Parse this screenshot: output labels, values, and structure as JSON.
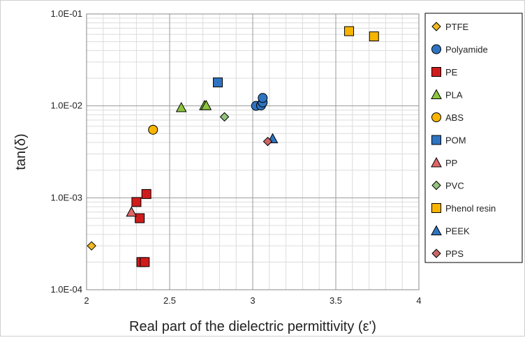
{
  "chart_data": {
    "type": "scatter",
    "title": "",
    "xlabel": "Real part of the dielectric permittivity (ε')",
    "ylabel": "tan(δ)",
    "x_scale": "linear",
    "y_scale": "log",
    "xlim": [
      2,
      4
    ],
    "ylim": [
      0.0001,
      0.1
    ],
    "x_ticks": [
      2,
      2.5,
      3,
      3.5,
      4
    ],
    "x_tick_labels": [
      "2",
      "2.5",
      "3",
      "3.5",
      "4"
    ],
    "y_ticks": [
      0.0001,
      0.001,
      0.01,
      0.1
    ],
    "y_tick_labels": [
      "1.0E-04",
      "1.0E-03",
      "1.0E-02",
      "1.0E-01"
    ],
    "grid": true,
    "legend_position": "right",
    "series": [
      {
        "name": "PTFE",
        "marker": "diamond",
        "color": "#f2b81f",
        "points": [
          [
            2.03,
            0.0003
          ]
        ]
      },
      {
        "name": "Polyamide",
        "marker": "circle",
        "color": "#2f74c0",
        "points": [
          [
            3.02,
            0.01
          ],
          [
            3.05,
            0.0101
          ],
          [
            3.06,
            0.0109
          ],
          [
            3.06,
            0.0122
          ]
        ]
      },
      {
        "name": "PE",
        "marker": "square",
        "color": "#d01c1c",
        "points": [
          [
            2.3,
            0.0009
          ],
          [
            2.32,
            0.0006
          ],
          [
            2.36,
            0.0011
          ],
          [
            2.33,
            0.0002
          ],
          [
            2.35,
            0.0002
          ]
        ]
      },
      {
        "name": "PLA",
        "marker": "triangle",
        "color": "#8cc63f",
        "points": [
          [
            2.57,
            0.0096
          ],
          [
            2.71,
            0.0101
          ],
          [
            2.72,
            0.0101
          ]
        ]
      },
      {
        "name": "ABS",
        "marker": "circle",
        "color": "#f7b500",
        "points": [
          [
            2.4,
            0.0055
          ]
        ]
      },
      {
        "name": "POM",
        "marker": "square",
        "color": "#2f74c0",
        "points": [
          [
            2.79,
            0.018
          ]
        ]
      },
      {
        "name": "PP",
        "marker": "triangle",
        "color": "#e06666",
        "points": [
          [
            2.27,
            0.0007
          ]
        ]
      },
      {
        "name": "PVC",
        "marker": "diamond",
        "color": "#93c47d",
        "points": [
          [
            2.83,
            0.0076
          ]
        ]
      },
      {
        "name": "Phenol resin",
        "marker": "square",
        "color": "#f7b500",
        "points": [
          [
            3.58,
            0.065
          ],
          [
            3.73,
            0.057
          ]
        ]
      },
      {
        "name": "PEEK",
        "marker": "triangle",
        "color": "#2f74c0",
        "points": [
          [
            3.12,
            0.0044
          ]
        ]
      },
      {
        "name": "PPS",
        "marker": "diamond",
        "color": "#cc6666",
        "points": [
          [
            3.09,
            0.0041
          ]
        ]
      }
    ]
  }
}
